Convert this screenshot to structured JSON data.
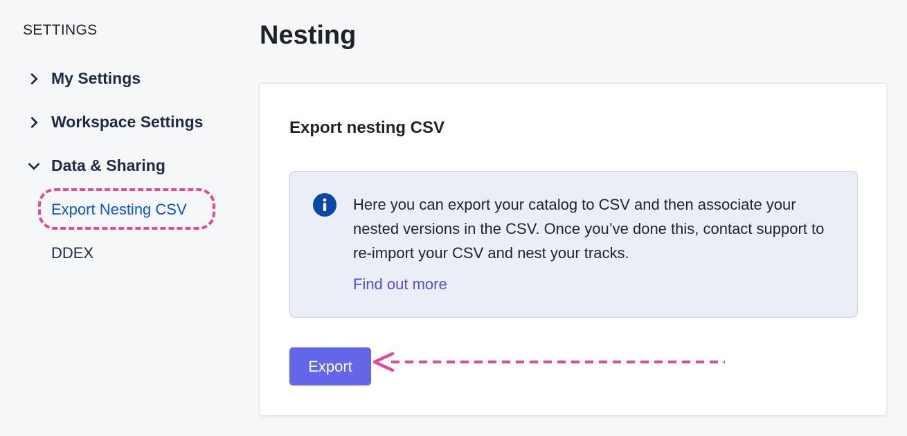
{
  "sidebar": {
    "title": "SETTINGS",
    "items": [
      {
        "label": "My Settings",
        "state": "collapsed"
      },
      {
        "label": "Workspace Settings",
        "state": "collapsed"
      },
      {
        "label": "Data & Sharing",
        "state": "expanded"
      }
    ],
    "subitems": [
      {
        "label": "Export Nesting CSV",
        "active": true
      },
      {
        "label": "DDEX",
        "active": false
      }
    ]
  },
  "page": {
    "title": "Nesting"
  },
  "card": {
    "heading": "Export nesting CSV",
    "info_icon": "info-circle-icon",
    "info_text": "Here you can export your catalog to CSV and then associate your nested versions in the CSV. Once you’ve done this, contact support to re-import your CSV and nest your tracks.",
    "link": "Find out more",
    "button": "Export"
  },
  "colors": {
    "accent": "#6466ea",
    "link": "#4f4fd6",
    "active_nav": "#0b55cf",
    "annotation": "#e8489a",
    "info_bg": "#eaeef7"
  }
}
